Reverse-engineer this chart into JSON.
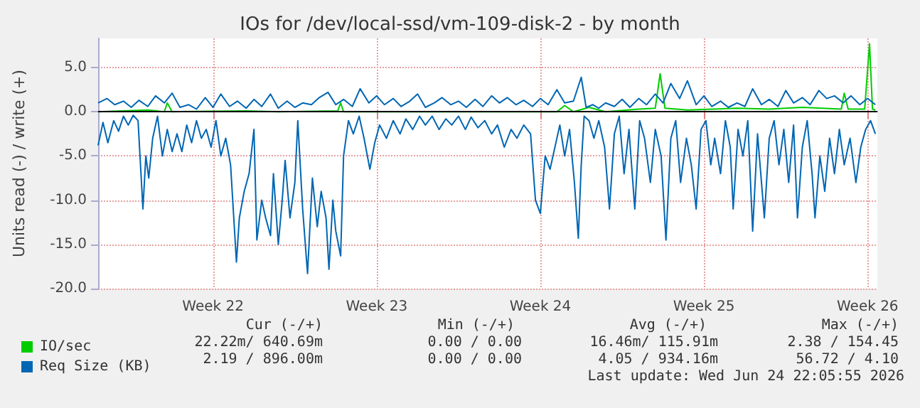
{
  "chart_data": {
    "type": "line",
    "title": "IOs for /dev/local-ssd/vm-109-disk-2 - by month",
    "ylabel": "Units read (-) / write (+)",
    "xlim": [
      "2026-05-22T14:00",
      "2026-06-24T22:00"
    ],
    "xticks": [
      {
        "value": "2026-05-27T12:00",
        "label": "Week 22"
      },
      {
        "value": "2026-06-03T12:00",
        "label": "Week 23"
      },
      {
        "value": "2026-06-10T12:00",
        "label": "Week 24"
      },
      {
        "value": "2026-06-17T12:00",
        "label": "Week 25"
      },
      {
        "value": "2026-06-24T12:00",
        "label": "Week 26"
      }
    ],
    "ylim": [
      -20,
      8.3
    ],
    "yticks": [
      {
        "value": 5,
        "label": "5.0"
      },
      {
        "value": 0,
        "label": "0.0"
      },
      {
        "value": -5,
        "label": "-5.0"
      },
      {
        "value": -10,
        "label": "-10.0"
      },
      {
        "value": -15,
        "label": "-15.0"
      },
      {
        "value": -20,
        "label": "-20.0"
      }
    ],
    "grid": true,
    "legend": "bottom left",
    "marker": "none",
    "line_style": "solid",
    "ref_lines": [
      {
        "axis": "y",
        "value": 0,
        "color": "#000000"
      }
    ],
    "annotations": [
      "Cur (-/+)",
      "Min (-/+)",
      "Avg (-/+)",
      "Max (-/+)",
      "22.22m/ 640.69m",
      "0.00 / 0.00",
      "16.46m/ 115.91m",
      "2.38 / 154.45",
      "2.19 / 896.00m",
      "0.00 / 0.00",
      "4.05 / 934.16m",
      "56.72 / 4.10",
      "Last update: Wed Jun 24 22:05:55 2026"
    ],
    "series": [
      {
        "name": "IO/sec",
        "color": "#00cc00",
        "x": [
          "2026-05-22T14:00",
          "2026-05-24T17:00",
          "2026-05-25T10:00",
          "2026-05-25T13:00",
          "2026-05-25T18:00",
          "2026-05-28T22:00",
          "2026-05-30T07:00",
          "2026-06-01T20:00",
          "2026-06-01T23:00",
          "2026-06-02T02:00",
          "2026-06-07T00:00",
          "2026-06-11T05:00",
          "2026-06-11T13:00",
          "2026-06-11T22:00",
          "2026-06-12T14:00",
          "2026-06-13T07:00",
          "2026-06-14T17:00",
          "2026-06-15T10:00",
          "2026-06-15T15:00",
          "2026-06-15T20:00",
          "2026-06-16T19:00",
          "2026-06-18T22:00",
          "2026-06-20T07:00",
          "2026-06-21T17:00",
          "2026-06-23T09:00",
          "2026-06-23T12:00",
          "2026-06-23T16:00",
          "2026-06-24T09:00",
          "2026-06-24T14:00",
          "2026-06-24T17:00",
          "2026-06-24T20:00"
        ],
        "values": [
          0,
          0.2,
          0,
          1.0,
          0,
          0.1,
          0,
          0.1,
          1.0,
          0,
          0,
          0,
          0.7,
          0,
          0.5,
          0,
          0.3,
          0.4,
          4.3,
          0.4,
          0.2,
          0.4,
          0.3,
          0.5,
          0.3,
          2.1,
          0.3,
          0.3,
          7.7,
          0.3,
          0.2
        ]
      },
      {
        "name": "Req Size (KB)",
        "color": "#0066b3",
        "x": [
          "2026-05-22T14:00",
          "2026-05-22T23:00",
          "2026-05-23T07:00",
          "2026-05-23T16:00",
          "2026-05-24T00:00",
          "2026-05-24T08:00",
          "2026-05-24T17:00",
          "2026-05-25T01:00",
          "2026-05-25T10:00",
          "2026-05-25T18:00",
          "2026-05-26T02:00",
          "2026-05-26T11:00",
          "2026-05-26T19:00",
          "2026-05-27T04:00",
          "2026-05-27T12:00",
          "2026-05-27T20:00",
          "2026-05-28T05:00",
          "2026-05-28T13:00",
          "2026-05-28T22:00",
          "2026-05-29T06:00",
          "2026-05-29T14:00",
          "2026-05-29T23:00",
          "2026-05-30T07:00",
          "2026-05-30T16:00",
          "2026-05-31T00:00",
          "2026-05-31T08:00",
          "2026-05-31T17:00",
          "2026-06-01T01:00",
          "2026-06-01T10:00",
          "2026-06-01T18:00",
          "2026-06-02T02:00",
          "2026-06-02T11:00",
          "2026-06-02T19:00",
          "2026-06-03T04:00",
          "2026-06-03T12:00",
          "2026-06-03T20:00",
          "2026-06-04T05:00",
          "2026-06-04T13:00",
          "2026-06-04T22:00",
          "2026-06-05T06:00",
          "2026-06-05T14:00",
          "2026-06-05T23:00",
          "2026-06-06T07:00",
          "2026-06-06T16:00",
          "2026-06-07T00:00",
          "2026-06-07T08:00",
          "2026-06-07T17:00",
          "2026-06-08T01:00",
          "2026-06-08T10:00",
          "2026-06-08T18:00",
          "2026-06-09T02:00",
          "2026-06-09T11:00",
          "2026-06-09T19:00",
          "2026-06-10T04:00",
          "2026-06-10T12:00",
          "2026-06-10T20:00",
          "2026-06-11T05:00",
          "2026-06-11T13:00",
          "2026-06-11T22:00",
          "2026-06-12T06:00",
          "2026-06-12T11:00",
          "2026-06-12T18:00",
          "2026-06-13T00:00",
          "2026-06-13T07:00",
          "2026-06-13T16:00",
          "2026-06-14T00:00",
          "2026-06-14T08:00",
          "2026-06-14T17:00",
          "2026-06-15T01:00",
          "2026-06-15T10:00",
          "2026-06-15T18:00",
          "2026-06-16T02:00",
          "2026-06-16T11:00",
          "2026-06-16T19:00",
          "2026-06-17T04:00",
          "2026-06-17T12:00",
          "2026-06-17T20:00",
          "2026-06-18T05:00",
          "2026-06-18T13:00",
          "2026-06-18T22:00",
          "2026-06-19T06:00",
          "2026-06-19T14:00",
          "2026-06-19T23:00",
          "2026-06-20T07:00",
          "2026-06-20T16:00",
          "2026-06-21T00:00",
          "2026-06-21T08:00",
          "2026-06-21T17:00",
          "2026-06-22T01:00",
          "2026-06-22T10:00",
          "2026-06-22T18:00",
          "2026-06-23T02:00",
          "2026-06-23T11:00",
          "2026-06-23T19:00",
          "2026-06-24T04:00",
          "2026-06-24T12:00",
          "2026-06-24T20:00"
        ],
        "values": [
          1.0,
          1.5,
          0.8,
          1.2,
          0.5,
          1.3,
          0.6,
          1.8,
          1.0,
          2.1,
          0.5,
          0.8,
          0.3,
          1.6,
          0.5,
          2.0,
          0.6,
          1.2,
          0.4,
          1.4,
          0.6,
          2.0,
          0.4,
          1.2,
          0.5,
          1.0,
          0.8,
          1.6,
          2.2,
          0.8,
          1.4,
          0.6,
          2.6,
          1.0,
          1.8,
          0.8,
          1.5,
          0.6,
          1.2,
          2.0,
          0.5,
          1.0,
          1.6,
          0.8,
          1.2,
          0.5,
          1.4,
          0.6,
          1.8,
          1.0,
          1.6,
          0.8,
          1.3,
          0.6,
          1.5,
          0.8,
          2.5,
          1.0,
          1.2,
          3.9,
          0.5,
          0.8,
          0.4,
          1.0,
          0.6,
          1.4,
          0.5,
          1.5,
          0.8,
          2.0,
          1.0,
          3.2,
          1.5,
          3.5,
          0.8,
          1.8,
          0.6,
          1.2,
          0.5,
          1.0,
          0.6,
          2.6,
          0.8,
          1.4,
          0.6,
          2.4,
          1.0,
          1.6,
          0.8,
          2.4,
          1.5,
          1.8,
          1.0,
          1.8,
          0.8,
          1.5,
          0.8
        ]
      },
      {
        "color": "#0066b3",
        "x": [
          "2026-05-22T14:00",
          "2026-05-22T19:00",
          "2026-05-23T00:00",
          "2026-05-23T06:00",
          "2026-05-23T11:00",
          "2026-05-23T16:00",
          "2026-05-23T21:00",
          "2026-05-24T02:00",
          "2026-05-24T07:00",
          "2026-05-24T12:00",
          "2026-05-24T15:00",
          "2026-05-24T18:00",
          "2026-05-24T22:00",
          "2026-05-25T03:00",
          "2026-05-25T08:00",
          "2026-05-25T13:00",
          "2026-05-25T18:00",
          "2026-05-25T23:00",
          "2026-05-26T04:00",
          "2026-05-26T09:00",
          "2026-05-26T14:00",
          "2026-05-26T19:00",
          "2026-05-27T00:00",
          "2026-05-27T05:00",
          "2026-05-27T10:00",
          "2026-05-27T15:00",
          "2026-05-27T20:00",
          "2026-05-28T01:00",
          "2026-05-28T06:00",
          "2026-05-28T12:00",
          "2026-05-28T15:00",
          "2026-05-28T20:00",
          "2026-05-29T01:00",
          "2026-05-29T06:00",
          "2026-05-29T09:00",
          "2026-05-29T14:00",
          "2026-05-29T18:00",
          "2026-05-29T23:00",
          "2026-05-30T02:00",
          "2026-05-30T07:00",
          "2026-05-30T11:00",
          "2026-05-30T14:00",
          "2026-05-30T19:00",
          "2026-05-31T00:00",
          "2026-05-31T03:00",
          "2026-05-31T08:00",
          "2026-05-31T13:00",
          "2026-05-31T18:00",
          "2026-05-31T23:00",
          "2026-06-01T03:00",
          "2026-06-01T08:00",
          "2026-06-01T11:00",
          "2026-06-01T15:00",
          "2026-06-01T18:00",
          "2026-06-01T23:00",
          "2026-06-02T02:00",
          "2026-06-02T07:00",
          "2026-06-02T12:00",
          "2026-06-02T18:00",
          "2026-06-02T23:00",
          "2026-06-03T05:00",
          "2026-06-03T10:00",
          "2026-06-03T15:00",
          "2026-06-03T22:00",
          "2026-06-04T05:00",
          "2026-06-04T12:00",
          "2026-06-04T18:00",
          "2026-06-05T01:00",
          "2026-06-05T08:00",
          "2026-06-05T14:00",
          "2026-06-05T21:00",
          "2026-06-06T04:00",
          "2026-06-06T11:00",
          "2026-06-06T17:00",
          "2026-06-07T00:00",
          "2026-06-07T07:00",
          "2026-06-07T13:00",
          "2026-06-07T20:00",
          "2026-06-08T03:00",
          "2026-06-08T10:00",
          "2026-06-08T16:00",
          "2026-06-08T23:00",
          "2026-06-09T06:00",
          "2026-06-09T12:00",
          "2026-06-09T19:00",
          "2026-06-10T02:00",
          "2026-06-10T07:00",
          "2026-06-10T12:00",
          "2026-06-10T17:00",
          "2026-06-10T22:00",
          "2026-06-11T03:00",
          "2026-06-11T08:00",
          "2026-06-11T13:00",
          "2026-06-11T18:00",
          "2026-06-11T23:00",
          "2026-06-12T03:00",
          "2026-06-12T06:00",
          "2026-06-12T09:00",
          "2026-06-12T14:00",
          "2026-06-12T19:00",
          "2026-06-13T00:00",
          "2026-06-13T06:00",
          "2026-06-13T11:00",
          "2026-06-13T16:00",
          "2026-06-13T21:00",
          "2026-06-14T02:00",
          "2026-06-14T07:00",
          "2026-06-14T13:00",
          "2026-06-14T18:00",
          "2026-06-14T23:00",
          "2026-06-15T05:00",
          "2026-06-15T10:00",
          "2026-06-15T16:00",
          "2026-06-15T21:00",
          "2026-06-16T02:00",
          "2026-06-16T07:00",
          "2026-06-16T12:00",
          "2026-06-16T18:00",
          "2026-06-16T23:00",
          "2026-06-17T04:00",
          "2026-06-17T09:00",
          "2026-06-17T14:00",
          "2026-06-17T19:00",
          "2026-06-17T23:00",
          "2026-06-18T05:00",
          "2026-06-18T10:00",
          "2026-06-18T15:00",
          "2026-06-18T18:00",
          "2026-06-18T23:00",
          "2026-06-19T04:00",
          "2026-06-19T09:00",
          "2026-06-19T14:00",
          "2026-06-19T19:00",
          "2026-06-20T02:00",
          "2026-06-20T07:00",
          "2026-06-20T12:00",
          "2026-06-20T17:00",
          "2026-06-20T22:00",
          "2026-06-21T03:00",
          "2026-06-21T08:00",
          "2026-06-21T12:00",
          "2026-06-21T17:00",
          "2026-06-21T22:00",
          "2026-06-22T03:00",
          "2026-06-22T06:00",
          "2026-06-22T11:00",
          "2026-06-22T16:00",
          "2026-06-22T21:00",
          "2026-06-23T02:00",
          "2026-06-23T07:00",
          "2026-06-23T12:00",
          "2026-06-23T18:00",
          "2026-06-24T00:00",
          "2026-06-24T05:00",
          "2026-06-24T10:00",
          "2026-06-24T15:00",
          "2026-06-24T20:00"
        ],
        "values": [
          -3.8,
          -1.2,
          -3.5,
          -1.0,
          -2.2,
          -0.5,
          -1.5,
          -0.4,
          -1.0,
          -11.0,
          -5.0,
          -7.5,
          -3.0,
          -0.5,
          -5.0,
          -2.0,
          -4.5,
          -2.5,
          -4.5,
          -1.5,
          -3.5,
          -1.0,
          -3.0,
          -2.0,
          -4.0,
          -1.0,
          -5.0,
          -3.0,
          -6.0,
          -17.0,
          -12.0,
          -9.0,
          -7.0,
          -2.0,
          -14.5,
          -10.0,
          -12.0,
          -14.0,
          -7.0,
          -15.0,
          -10.0,
          -5.5,
          -12.0,
          -8.0,
          -1.0,
          -11.0,
          -18.3,
          -7.5,
          -13.0,
          -9.0,
          -12.0,
          -17.8,
          -10.0,
          -13.5,
          -16.3,
          -5.0,
          -1.0,
          -2.5,
          -0.5,
          -3.0,
          -6.5,
          -3.5,
          -1.5,
          -3.0,
          -1.0,
          -2.5,
          -0.8,
          -2.0,
          -0.5,
          -1.5,
          -0.5,
          -2.0,
          -0.8,
          -1.5,
          -0.5,
          -2.0,
          -0.6,
          -1.8,
          -1.0,
          -2.5,
          -1.5,
          -4.0,
          -2.0,
          -3.0,
          -1.5,
          -2.5,
          -10.0,
          -11.5,
          -5.0,
          -6.5,
          -4.0,
          -1.5,
          -5.0,
          -2.0,
          -8.0,
          -14.3,
          -6.0,
          -0.5,
          -1.0,
          -3.0,
          -1.0,
          -4.0,
          -11.0,
          -2.5,
          -0.5,
          -7.0,
          -2.0,
          -11.0,
          -1.0,
          -3.0,
          -8.0,
          -2.0,
          -5.0,
          -14.5,
          -3.0,
          -1.0,
          -8.0,
          -3.0,
          -6.0,
          -11.0,
          -2.0,
          -1.0,
          -6.0,
          -3.0,
          -7.0,
          -1.0,
          -4.0,
          -11.0,
          -2.0,
          -5.0,
          -1.0,
          -13.5,
          -2.5,
          -12.0,
          -3.0,
          -1.0,
          -6.0,
          -2.0,
          -8.0,
          -1.5,
          -12.0,
          -4.0,
          -1.0,
          -7.0,
          -12.0,
          -5.0,
          -9.0,
          -3.0,
          -7.0,
          -2.0,
          -6.0,
          -3.0,
          -8.0,
          -4.0,
          -2.0,
          -1.0,
          -2.5
        ]
      }
    ]
  }
}
